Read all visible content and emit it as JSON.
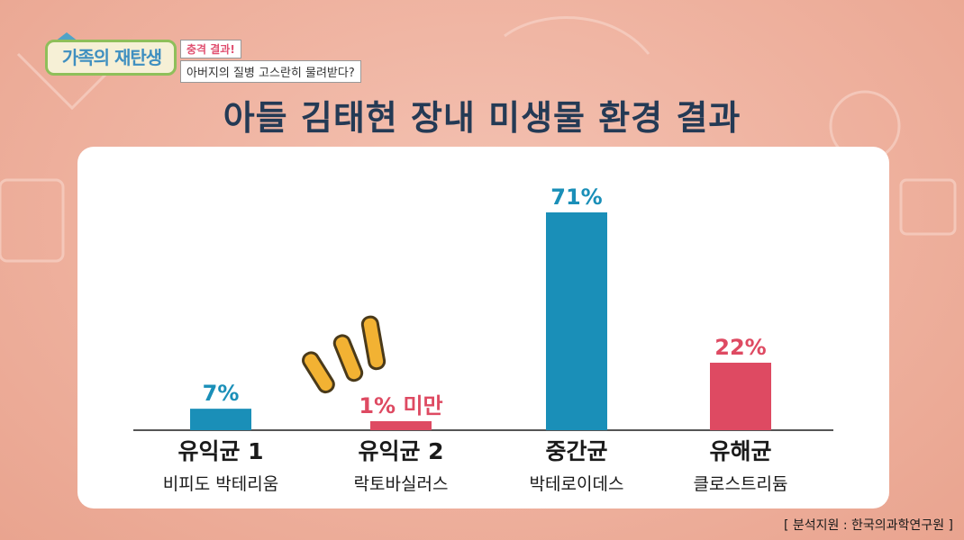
{
  "show": {
    "logo_text": "가족의 재탄생",
    "caption_top": "충격 결과!",
    "caption_bottom": "아버지의 질병 고스란히 물려받다?"
  },
  "source_note": "[ 분석지원 : 한국의과학연구원 ]",
  "colors": {
    "blue": "#1a8fb8",
    "red": "#de4a62",
    "title": "#243a55"
  },
  "chart_data": {
    "type": "bar",
    "title": "아들 김태현 장내 미생물 환경 결과",
    "categories": [
      "유익균 1",
      "유익균 2",
      "중간균",
      "유해균"
    ],
    "subcategories": [
      "비피도 박테리움",
      "락토바실러스",
      "박테로이데스",
      "클로스트리듐"
    ],
    "values": [
      7,
      1,
      71,
      22
    ],
    "value_labels": [
      "7%",
      "1% 미만",
      "71%",
      "22%"
    ],
    "series_colors": [
      "#1a8fb8",
      "#de4a62",
      "#1a8fb8",
      "#de4a62"
    ],
    "unit": "%",
    "ylim": [
      0,
      71
    ],
    "grid": false,
    "legend": "none"
  }
}
